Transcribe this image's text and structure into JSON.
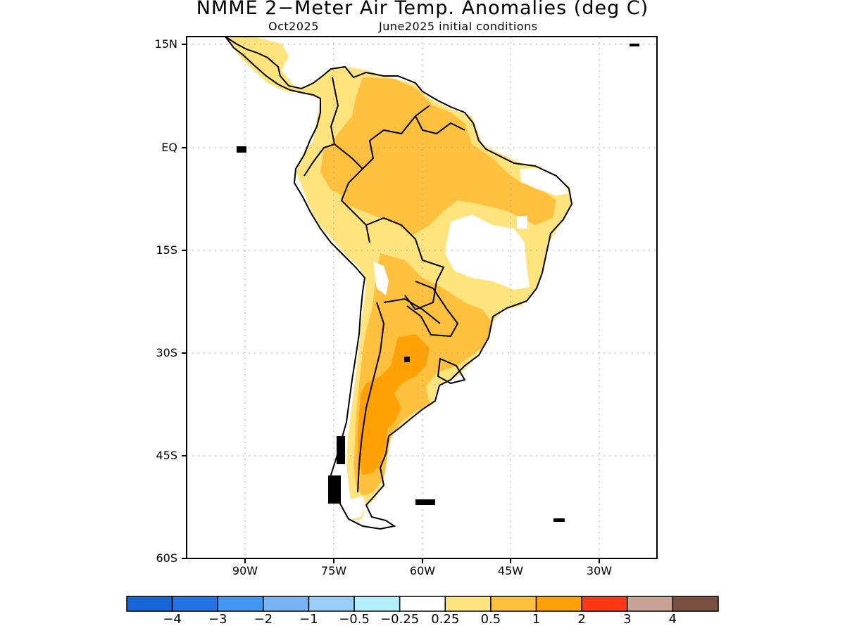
{
  "title": "NMME 2−Meter Air Temp. Anomalies (deg C)",
  "subtitle_left": "Oct2025",
  "subtitle_right": "June2025 initial conditions",
  "lat_labels": [
    "15N",
    "EQ",
    "15S",
    "30S",
    "45S",
    "60S"
  ],
  "lon_labels": [
    "90W",
    "75W",
    "60W",
    "45W",
    "30W"
  ],
  "colorbar": {
    "colors": [
      "#1565d8",
      "#2473e6",
      "#4096f0",
      "#78b4f5",
      "#99cdfa",
      "#b3eefb",
      "#ffffff",
      "#ffe47e",
      "#ffc03e",
      "#ffa003",
      "#ff3714",
      "#c8a294",
      "#7a5042"
    ],
    "labels": [
      "−4",
      "−3",
      "−2",
      "−1",
      "−0.5",
      "−0.25",
      "0.25",
      "0.5",
      "1",
      "2",
      "3",
      "4"
    ]
  },
  "legend_colors": {
    "ocean": "#ffffff",
    "coastline": "#000000",
    "grid": "#aaaaaa"
  }
}
